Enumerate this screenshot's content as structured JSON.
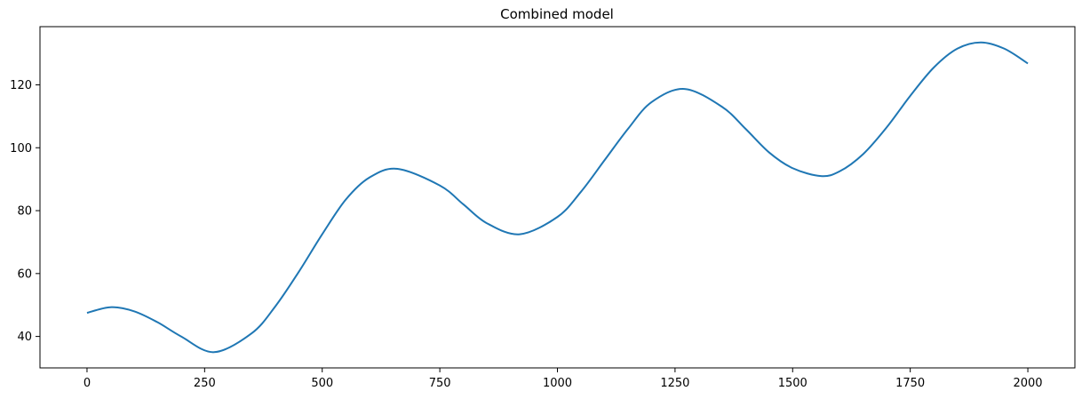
{
  "chart_data": {
    "type": "line",
    "title": "Combined model",
    "xlabel": "",
    "ylabel": "",
    "xlim": [
      -100,
      2100
    ],
    "ylim": [
      30,
      138.5
    ],
    "grid": false,
    "legend": "none",
    "x_ticks": [
      0,
      250,
      500,
      750,
      1000,
      1250,
      1500,
      1750,
      2000
    ],
    "x_tick_labels": [
      "0",
      "250",
      "500",
      "750",
      "1000",
      "1250",
      "1500",
      "1750",
      "2000"
    ],
    "y_ticks": [
      40,
      60,
      80,
      100,
      120
    ],
    "y_tick_labels": [
      "40",
      "60",
      "80",
      "100",
      "120"
    ],
    "series": [
      {
        "color": "#1f77b4",
        "x": [
          0,
          50,
          100,
          150,
          200,
          270,
          350,
          400,
          450,
          500,
          550,
          600,
          660,
          750,
          800,
          850,
          920,
          1000,
          1050,
          1100,
          1150,
          1200,
          1270,
          1350,
          1400,
          1450,
          1500,
          1560,
          1600,
          1650,
          1700,
          1750,
          1800,
          1850,
          1900,
          1950,
          2000
        ],
        "y": [
          47.5,
          49.3,
          48.0,
          44.5,
          40.0,
          35.0,
          41.0,
          49.5,
          60.5,
          72.5,
          83.5,
          90.5,
          93.3,
          88.0,
          82.0,
          76.0,
          72.5,
          78.0,
          86.0,
          96.0,
          106.0,
          114.5,
          118.7,
          113.0,
          106.0,
          98.5,
          93.5,
          91.0,
          92.5,
          98.0,
          106.5,
          116.5,
          125.5,
          131.5,
          133.5,
          131.5,
          126.8
        ]
      }
    ]
  }
}
